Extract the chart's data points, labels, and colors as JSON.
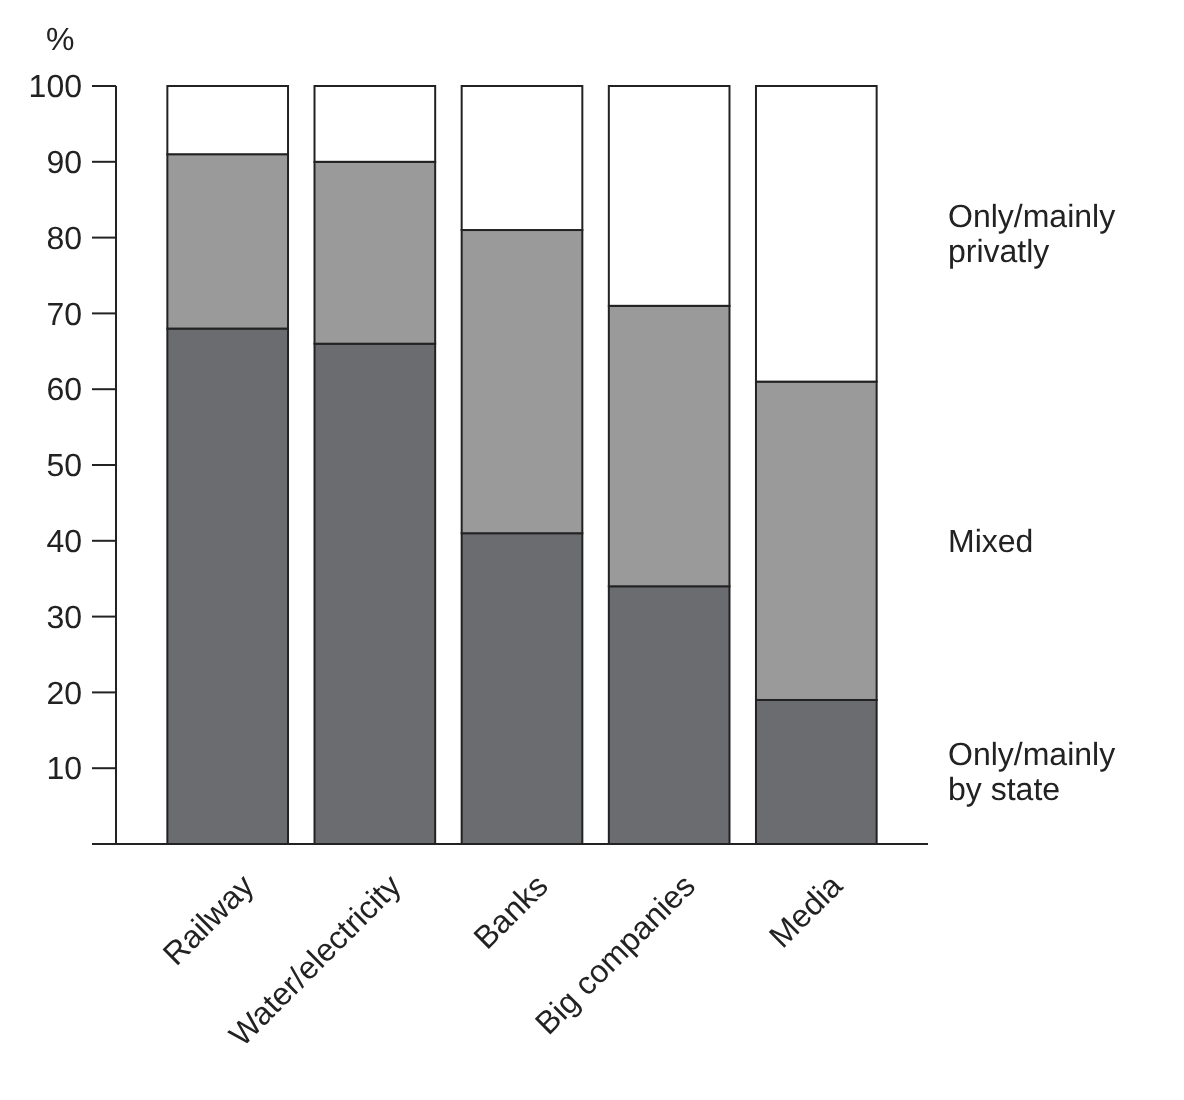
{
  "chart_data": {
    "type": "bar",
    "stacked": true,
    "ylabel": "%",
    "categories": [
      "Railway",
      "Water/electricity",
      "Banks",
      "Big companies",
      "Media"
    ],
    "series": [
      {
        "name": "Only/mainly by state",
        "color": "#6b6c70",
        "values": [
          68,
          66,
          41,
          34,
          19
        ]
      },
      {
        "name": "Mixed",
        "color": "#9a9a9a",
        "values": [
          23,
          24,
          40,
          37,
          42
        ]
      },
      {
        "name": "Only/mainly privatly",
        "color": "#ffffff",
        "values": [
          9,
          10,
          19,
          29,
          39
        ]
      }
    ],
    "ylim": [
      0,
      100
    ],
    "yticks": [
      10,
      20,
      30,
      40,
      50,
      60,
      70,
      80,
      90,
      100
    ],
    "legend": "right"
  }
}
